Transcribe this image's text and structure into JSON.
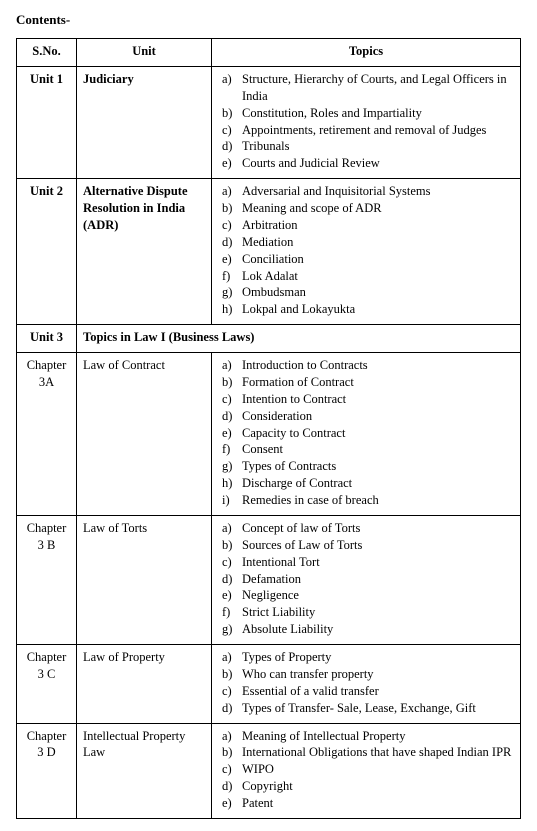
{
  "heading": "Contents-",
  "columns": {
    "sno": "S.No.",
    "unit": "Unit",
    "topics": "Topics"
  },
  "rows": [
    {
      "sno": "Unit 1",
      "sno_bold": true,
      "unit": "Judiciary",
      "unit_bold": true,
      "topics": [
        "Structure, Hierarchy of Courts, and Legal Officers in India",
        "Constitution, Roles and Impartiality",
        "Appointments, retirement and removal of Judges",
        "Tribunals",
        "Courts and Judicial Review"
      ]
    },
    {
      "sno": "Unit 2",
      "sno_bold": true,
      "unit": "Alternative Dispute Resolution in India (ADR)",
      "unit_bold": true,
      "topics": [
        "Adversarial and Inquisitorial Systems",
        "Meaning and scope of ADR",
        "Arbitration",
        "Mediation",
        "Conciliation",
        "Lok Adalat",
        "Ombudsman",
        "Lokpal and Lokayukta"
      ]
    },
    {
      "section": true,
      "sno": "Unit 3",
      "section_text": "Topics in Law I (Business Laws)"
    },
    {
      "sno": "Chapter 3A",
      "sno_bold": false,
      "unit": "Law of Contract",
      "unit_bold": false,
      "topics": [
        "Introduction to Contracts",
        "Formation of Contract",
        "Intention to Contract",
        "Consideration",
        "Capacity to Contract",
        "Consent",
        "Types of Contracts",
        "Discharge of Contract",
        "Remedies in case of breach"
      ]
    },
    {
      "sno": "Chapter 3 B",
      "sno_bold": false,
      "unit": "Law of Torts",
      "unit_bold": false,
      "topics": [
        "Concept of law of Torts",
        "Sources of Law of Torts",
        "Intentional Tort",
        "Defamation",
        "Negligence",
        "Strict Liability",
        "Absolute Liability"
      ]
    },
    {
      "sno": "Chapter 3 C",
      "sno_bold": false,
      "unit": "Law of Property",
      "unit_bold": false,
      "topics": [
        "Types of Property",
        "Who can transfer property",
        "Essential of a valid transfer",
        "Types of Transfer- Sale, Lease, Exchange, Gift"
      ]
    },
    {
      "sno": "Chapter 3 D",
      "sno_bold": false,
      "unit": "Intellectual Property Law",
      "unit_bold": false,
      "topics": [
        "Meaning of Intellectual Property",
        "International Obligations that have shaped Indian IPR",
        "WIPO",
        "Copyright",
        "Patent"
      ]
    }
  ],
  "list_markers": [
    "a)",
    "b)",
    "c)",
    "d)",
    "e)",
    "f)",
    "g)",
    "h)",
    "i)"
  ]
}
